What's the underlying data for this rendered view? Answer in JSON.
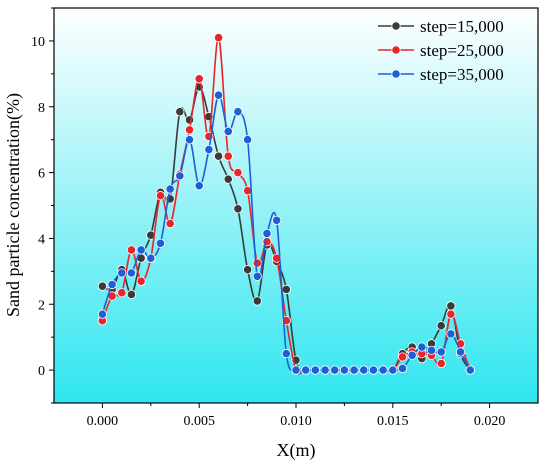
{
  "chart_data": {
    "type": "line",
    "title": "",
    "xlabel": "X(m)",
    "ylabel": "Sand particle concentration(%)",
    "xlim": [
      -0.0025,
      0.0225
    ],
    "ylim": [
      -1,
      11
    ],
    "xticks": [
      0.0,
      0.005,
      0.01,
      0.015,
      0.02
    ],
    "xtick_labels": [
      "0.000",
      "0.005",
      "0.010",
      "0.015",
      "0.020"
    ],
    "yticks": [
      0,
      2,
      4,
      6,
      8,
      10
    ],
    "ytick_labels": [
      "0",
      "2",
      "4",
      "6",
      "8",
      "10"
    ],
    "grid": false,
    "legend_position": "top-right",
    "background": "gradient white-to-cyan (top to bottom)",
    "series": [
      {
        "name": "step=15,000",
        "color": "#3a3a3a",
        "x": [
          0.0,
          0.0005,
          0.001,
          0.0015,
          0.002,
          0.0025,
          0.003,
          0.0035,
          0.004,
          0.0045,
          0.005,
          0.0055,
          0.006,
          0.0065,
          0.007,
          0.0075,
          0.008,
          0.0085,
          0.009,
          0.0095,
          0.01,
          0.0105,
          0.011,
          0.0115,
          0.012,
          0.0125,
          0.013,
          0.0135,
          0.014,
          0.0145,
          0.015,
          0.0155,
          0.016,
          0.0165,
          0.017,
          0.0175,
          0.018,
          0.0185,
          0.019
        ],
        "values": [
          2.55,
          2.45,
          3.05,
          2.3,
          3.4,
          4.1,
          5.4,
          5.2,
          7.85,
          7.6,
          8.6,
          7.7,
          6.5,
          5.8,
          4.9,
          3.05,
          2.1,
          3.8,
          3.3,
          2.45,
          0.3,
          0.0,
          0.0,
          0.0,
          0.0,
          0.0,
          0.0,
          0.0,
          0.0,
          0.0,
          0.0,
          0.5,
          0.7,
          0.35,
          0.8,
          1.35,
          1.95,
          0.5,
          0.0
        ]
      },
      {
        "name": "step=25,000",
        "color": "#e8262a",
        "x": [
          0.0,
          0.0005,
          0.001,
          0.0015,
          0.002,
          0.0025,
          0.003,
          0.0035,
          0.004,
          0.0045,
          0.005,
          0.0055,
          0.006,
          0.0065,
          0.007,
          0.0075,
          0.008,
          0.0085,
          0.009,
          0.0095,
          0.01,
          0.0105,
          0.011,
          0.0115,
          0.012,
          0.0125,
          0.013,
          0.0135,
          0.014,
          0.0145,
          0.015,
          0.0155,
          0.016,
          0.0165,
          0.017,
          0.0175,
          0.018,
          0.0185,
          0.019
        ],
        "values": [
          1.5,
          2.25,
          2.35,
          3.65,
          2.7,
          3.4,
          5.3,
          4.45,
          5.95,
          7.3,
          8.85,
          7.1,
          10.1,
          6.5,
          6.0,
          5.45,
          3.25,
          3.9,
          3.4,
          1.5,
          0.0,
          0.0,
          0.0,
          0.0,
          0.0,
          0.0,
          0.0,
          0.0,
          0.0,
          0.0,
          0.0,
          0.4,
          0.55,
          0.5,
          0.45,
          0.2,
          1.7,
          0.8,
          0.0
        ]
      },
      {
        "name": "step=35,000",
        "color": "#1f5fd6",
        "x": [
          0.0,
          0.0005,
          0.001,
          0.0015,
          0.002,
          0.0025,
          0.003,
          0.0035,
          0.004,
          0.0045,
          0.005,
          0.0055,
          0.006,
          0.0065,
          0.007,
          0.0075,
          0.008,
          0.0085,
          0.009,
          0.0095,
          0.01,
          0.0105,
          0.011,
          0.0115,
          0.012,
          0.0125,
          0.013,
          0.0135,
          0.014,
          0.0145,
          0.015,
          0.0155,
          0.016,
          0.0165,
          0.017,
          0.0175,
          0.018,
          0.0185,
          0.019
        ],
        "values": [
          1.7,
          2.6,
          2.95,
          2.95,
          3.65,
          3.4,
          3.85,
          5.5,
          5.9,
          7.0,
          5.6,
          6.7,
          8.35,
          7.25,
          7.85,
          7.0,
          2.85,
          4.15,
          4.55,
          0.5,
          0.0,
          0.0,
          0.0,
          0.0,
          0.0,
          0.0,
          0.0,
          0.0,
          0.0,
          0.0,
          0.0,
          0.05,
          0.45,
          0.7,
          0.6,
          0.55,
          1.1,
          0.55,
          0.0
        ]
      }
    ]
  }
}
